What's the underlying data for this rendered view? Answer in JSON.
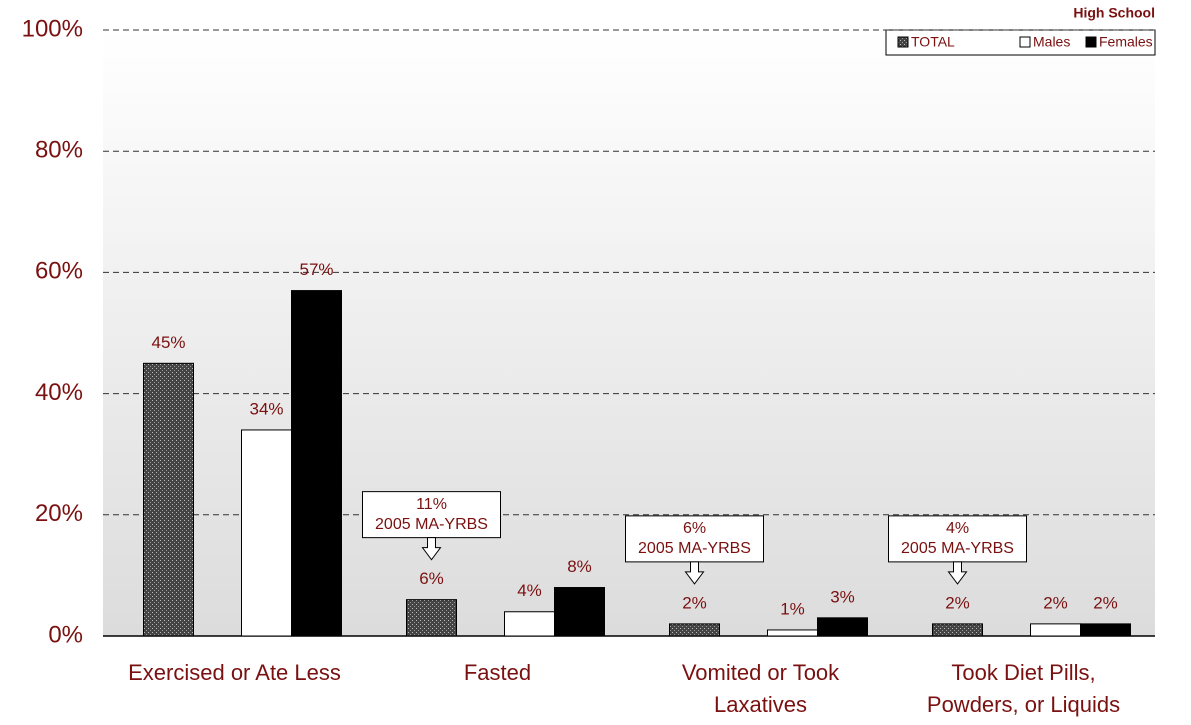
{
  "chart_data": {
    "type": "bar",
    "legend_title": "High School",
    "categories": [
      [
        "Exercised or Ate Less"
      ],
      [
        "Fasted"
      ],
      [
        "Vomited or Took",
        "Laxatives"
      ],
      [
        "Took Diet Pills,",
        "Powders, or Liquids"
      ]
    ],
    "series": [
      {
        "name": "TOTAL",
        "color": "#555555",
        "values": [
          45,
          6,
          2,
          2
        ],
        "value_labels": [
          "45%",
          "6%",
          "2%",
          "2%"
        ]
      },
      {
        "name": "Males",
        "color": "#ffffff",
        "values": [
          34,
          4,
          1,
          2
        ],
        "value_labels": [
          "34%",
          "4%",
          "1%",
          "2%"
        ]
      },
      {
        "name": "Females",
        "color": "#000000",
        "values": [
          57,
          8,
          3,
          2
        ],
        "value_labels": [
          "57%",
          "8%",
          "3%",
          "2%"
        ]
      }
    ],
    "annotations": [
      {
        "value": 11,
        "label": "11%",
        "text": "2005 MA-YRBS"
      },
      {
        "value": 6,
        "label": "6%",
        "text": "2005 MA-YRBS"
      },
      {
        "value": 4,
        "label": "4%",
        "text": "2005 MA-YRBS"
      }
    ],
    "ylim": [
      0,
      100
    ],
    "yticks": [
      {
        "value": 0,
        "label": "0%"
      },
      {
        "value": 20,
        "label": "20%"
      },
      {
        "value": 40,
        "label": "40%"
      },
      {
        "value": 60,
        "label": "60%"
      },
      {
        "value": 80,
        "label": "80%"
      },
      {
        "value": 100,
        "label": "100%"
      }
    ],
    "grid": true
  }
}
